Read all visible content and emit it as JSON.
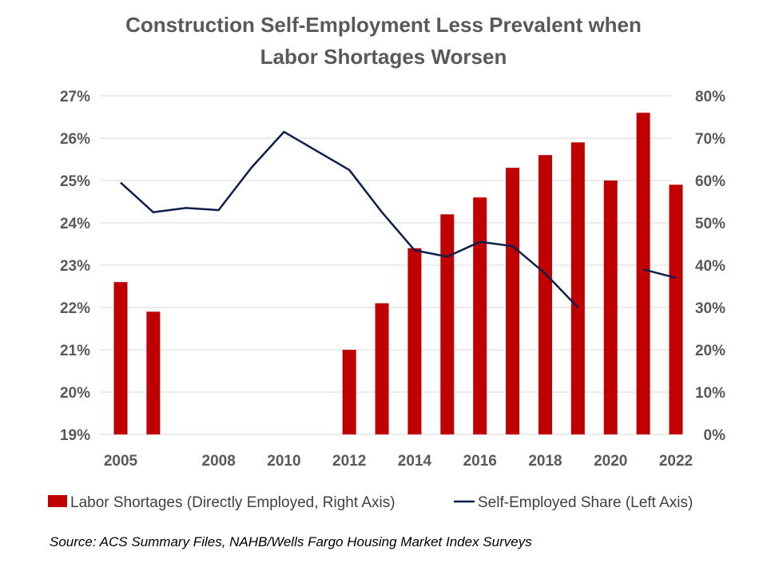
{
  "chart_data": {
    "type": "bar+line",
    "title_lines": [
      "Construction Self-Employment Less Prevalent when",
      "Labor Shortages Worsen"
    ],
    "x_ticks": [
      "2005",
      "2008",
      "2010",
      "2012",
      "2014",
      "2016",
      "2018",
      "2020",
      "2022"
    ],
    "left_axis": {
      "ticks": [
        "27%",
        "26%",
        "25%",
        "24%",
        "23%",
        "22%",
        "21%",
        "20%",
        "19%"
      ],
      "ylim": [
        19,
        27
      ]
    },
    "right_axis": {
      "ticks": [
        "80%",
        "70%",
        "60%",
        "50%",
        "40%",
        "30%",
        "20%",
        "10%",
        "0%"
      ],
      "ylim": [
        0,
        80
      ]
    },
    "x": [
      2005,
      2006,
      2007,
      2008,
      2009,
      2010,
      2011,
      2012,
      2013,
      2014,
      2015,
      2016,
      2017,
      2018,
      2019,
      2020,
      2021,
      2022
    ],
    "series": [
      {
        "name": "Labor Shortages (Directly Employed, Right Axis)",
        "type": "bar",
        "axis": "right",
        "color": "#c00000",
        "values": [
          36,
          29,
          null,
          null,
          null,
          null,
          null,
          20,
          31,
          44,
          52,
          56,
          63,
          66,
          69,
          60,
          76,
          59
        ]
      },
      {
        "name": "Self-Employed Share (Left Axis)",
        "type": "line",
        "axis": "left",
        "color": "#0d1f4d",
        "values": [
          24.95,
          24.25,
          24.35,
          24.3,
          25.3,
          26.15,
          25.7,
          25.25,
          24.25,
          23.35,
          23.2,
          23.55,
          23.45,
          22.8,
          22.0,
          null,
          22.9,
          22.7
        ]
      }
    ],
    "grid": true,
    "legend_position": "bottom",
    "source": "Source: ACS Summary Files, NAHB/Wells Fargo Housing Market Index Surveys"
  }
}
